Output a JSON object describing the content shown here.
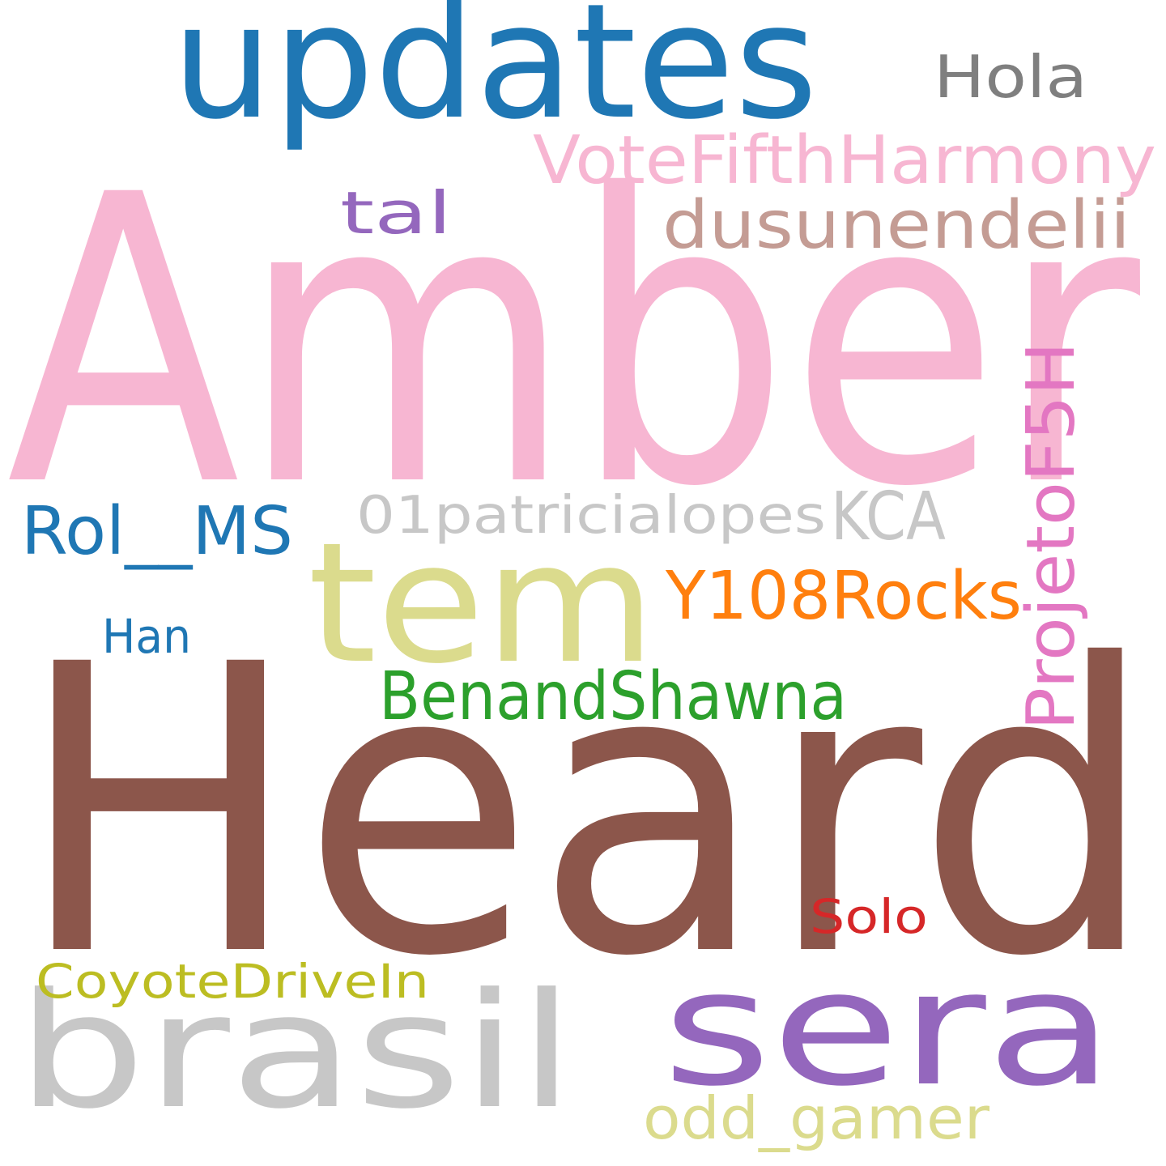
{
  "words": [
    {
      "id": "amber",
      "text": "Amber",
      "color": "#f7b6d2"
    },
    {
      "id": "heard",
      "text": "Heard",
      "color": "#8c564b"
    },
    {
      "id": "updates",
      "text": "updates",
      "color": "#1f77b4"
    },
    {
      "id": "tem",
      "text": "tem",
      "color": "#dbdb8d"
    },
    {
      "id": "sera",
      "text": "sera",
      "color": "#9467bd"
    },
    {
      "id": "brasil",
      "text": "brasil",
      "color": "#c7c7c7"
    },
    {
      "id": "votefifthharmony",
      "text": "VoteFifthHarmony",
      "color": "#f7b6d2"
    },
    {
      "id": "dusunendelii",
      "text": "dusunendelii",
      "color": "#c49c94"
    },
    {
      "id": "hola",
      "text": "Hola",
      "color": "#7f7f7f"
    },
    {
      "id": "tal",
      "text": "tal",
      "color": "#9467bd"
    },
    {
      "id": "projetof5h",
      "text": "ProjetoF5H",
      "color": "#e377c2"
    },
    {
      "id": "01patricialopes",
      "text": "01patricialopes",
      "color": "#c7c7c7"
    },
    {
      "id": "kca",
      "text": "KCA",
      "color": "#c7c7c7"
    },
    {
      "id": "rol-ms",
      "text": "Rol__MS",
      "color": "#1f77b4"
    },
    {
      "id": "y108rocks",
      "text": "Y108Rocks",
      "color": "#ff7f0e"
    },
    {
      "id": "han",
      "text": "Han",
      "color": "#1f77b4"
    },
    {
      "id": "benandshawna",
      "text": "BenandShawna",
      "color": "#2ca02c"
    },
    {
      "id": "solo",
      "text": "Solo",
      "color": "#d62728"
    },
    {
      "id": "coyotedrivein",
      "text": "CoyoteDriveIn",
      "color": "#bcbd22"
    },
    {
      "id": "odd-gamer",
      "text": "odd_gamer",
      "color": "#dbdb8d"
    }
  ]
}
